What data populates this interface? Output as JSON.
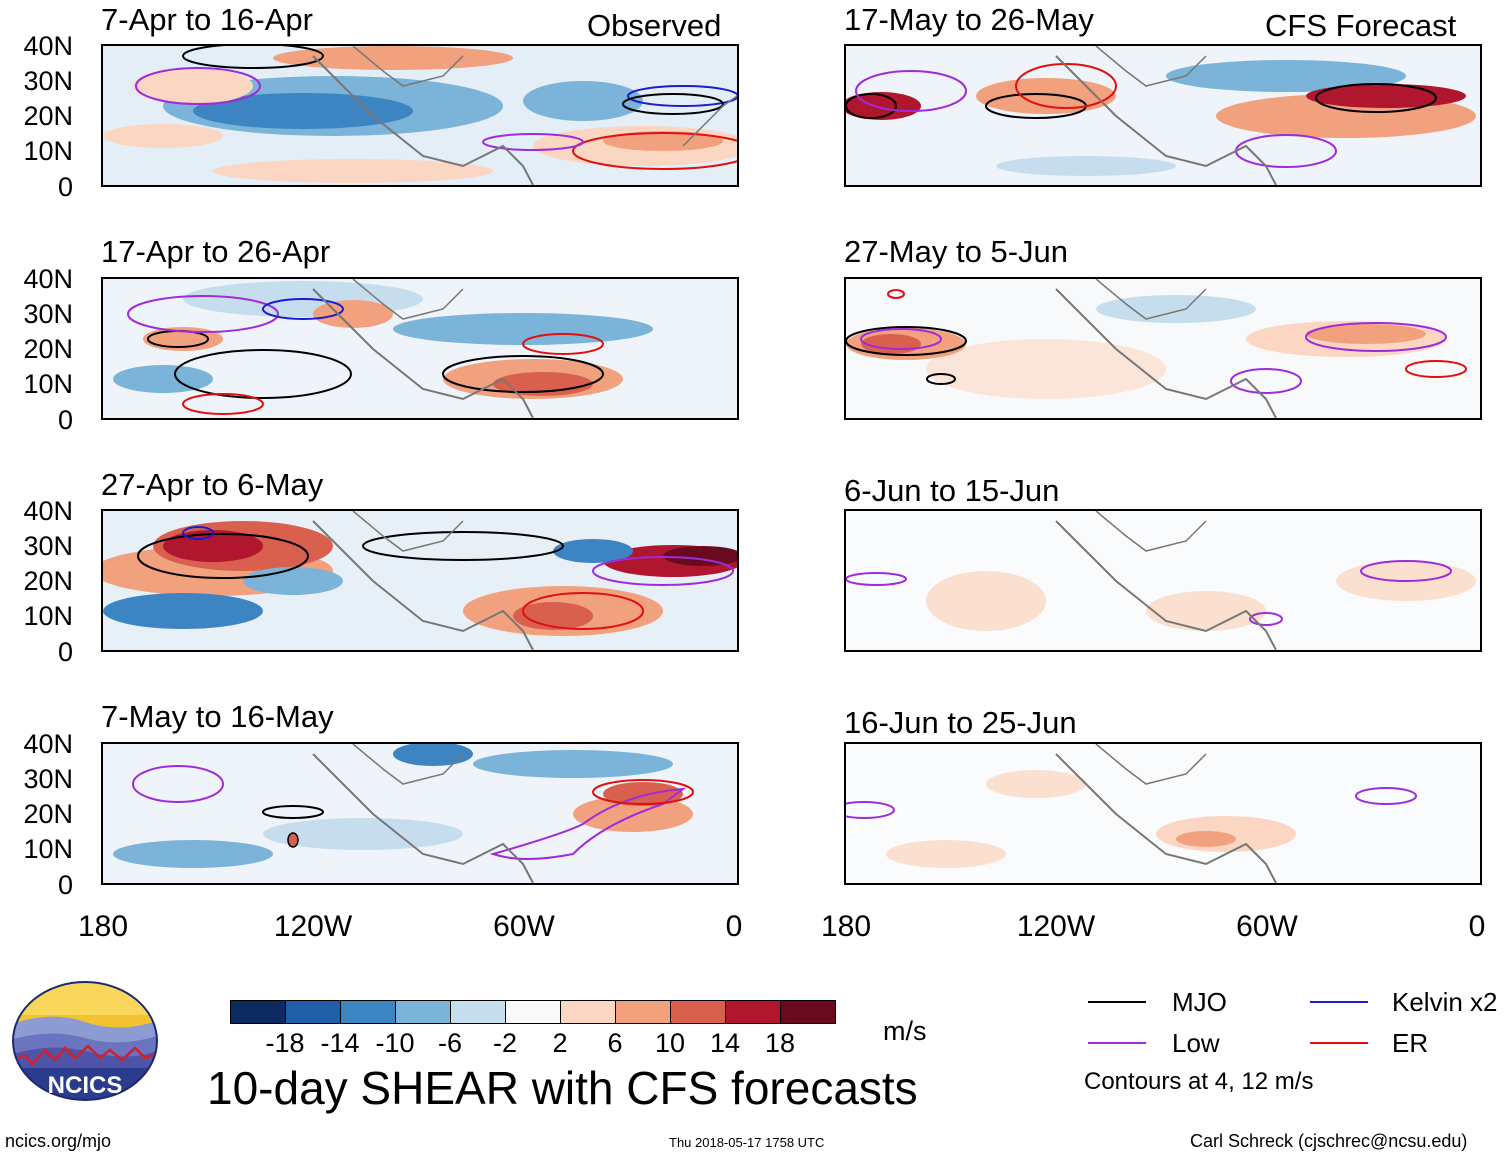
{
  "header": {
    "left_label": "Observed",
    "right_label": "CFS Forecast"
  },
  "panels_left": [
    {
      "title": "7-Apr to 16-Apr"
    },
    {
      "title": "17-Apr to 26-Apr"
    },
    {
      "title": "27-Apr to 6-May"
    },
    {
      "title": "7-May to 16-May"
    }
  ],
  "panels_right": [
    {
      "title": "17-May to 26-May"
    },
    {
      "title": "27-May to 5-Jun"
    },
    {
      "title": "6-Jun to 15-Jun"
    },
    {
      "title": "16-Jun to 25-Jun"
    }
  ],
  "y_ticks": [
    "40N",
    "30N",
    "20N",
    "10N",
    "0"
  ],
  "x_ticks": [
    "180",
    "120W",
    "60W",
    "0"
  ],
  "colorbar": {
    "labels": [
      "-18",
      "-14",
      "-10",
      "-6",
      "-2",
      "2",
      "6",
      "10",
      "14",
      "18"
    ],
    "colors": [
      "#0d2a5e",
      "#1f5ea8",
      "#3d84c3",
      "#7bb3d9",
      "#c6ddee",
      "#f9f9f9",
      "#fbd6c2",
      "#f2a17e",
      "#d9604f",
      "#b0172e",
      "#6a0a1f"
    ],
    "unit": "m/s"
  },
  "legend": {
    "items": [
      {
        "label": "MJO",
        "color": "#000000"
      },
      {
        "label": "Low",
        "color": "#a02bd8"
      },
      {
        "label": "Kelvin x2",
        "color": "#1c1ccc"
      },
      {
        "label": "ER",
        "color": "#e01010"
      }
    ],
    "note": "Contours at 4, 12 m/s"
  },
  "main_title": "10-day SHEAR with CFS forecasts",
  "logo_text": "NCICS",
  "footer": {
    "url": "ncics.org/mjo",
    "timestamp": "Thu 2018-05-17 1758 UTC",
    "credit": "Carl Schreck (cjschrec@ncsu.edu)"
  }
}
